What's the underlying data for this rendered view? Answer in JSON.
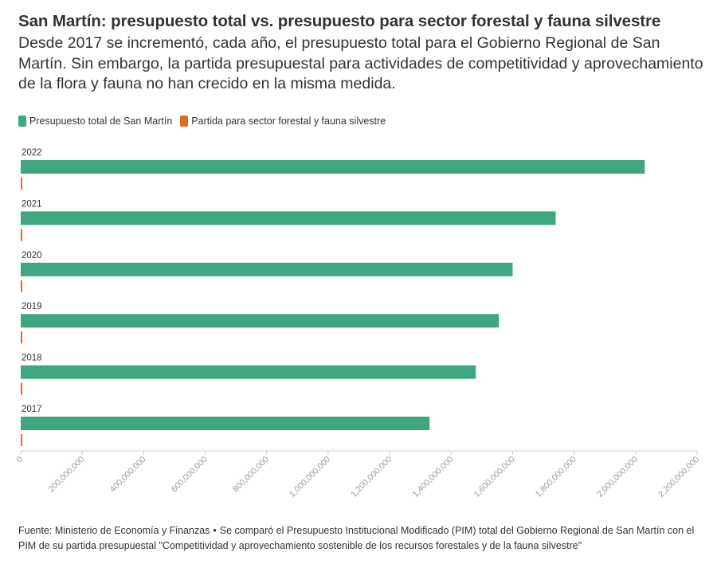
{
  "header": {
    "title": "San Martín: presupuesto total vs. presupuesto para sector forestal y fauna silvestre",
    "subtitle": "Desde 2017 se incrementó, cada año, el presupuesto total para el Gobierno Regional de San Martín. Sin embargo, la partida presupuestal para actividades de competitividad y aprovechamiento de la flora y fauna no han crecido en la misma medida."
  },
  "colors": {
    "total": "#3fa680",
    "forestal": "#e06c1e",
    "text": "#333333",
    "axis": "#cccccc",
    "tick_label": "#999999"
  },
  "chart_data": {
    "type": "bar",
    "orientation": "horizontal",
    "title": "San Martín: presupuesto total vs. presupuesto para sector forestal y fauna silvestre",
    "categories": [
      "2022",
      "2021",
      "2020",
      "2019",
      "2018",
      "2017"
    ],
    "series": [
      {
        "name": "Presupuesto total de San Martín",
        "color": "#3fa680",
        "values": [
          2030000000,
          1740000000,
          1600000000,
          1555000000,
          1480000000,
          1330000000
        ]
      },
      {
        "name": "Partida para sector forestal y fauna silvestre",
        "color": "#e06c1e",
        "values": [
          4500000,
          4000000,
          3800000,
          3500000,
          3200000,
          3000000
        ]
      }
    ],
    "xlim": [
      0,
      2200000000
    ],
    "x_ticks": [
      0,
      200000000,
      400000000,
      600000000,
      800000000,
      1000000000,
      1200000000,
      1400000000,
      1600000000,
      1800000000,
      2000000000,
      2200000000
    ],
    "x_tick_labels": [
      "0",
      "200,000,000",
      "400,000,000",
      "600,000,000",
      "800,000,000",
      "1,000,000,000",
      "1,200,000,000",
      "1,400,000,000",
      "1,600,000,000",
      "1,800,000,000",
      "2,000,000,000",
      "2,200,000,000"
    ],
    "legend_position": "top-left",
    "grid": false
  },
  "footer": {
    "source": "Fuente: Ministerio de Economía y Finanzas",
    "separator": "•",
    "note": "Se comparó el Presupuesto Institucional Modificado (PIM) total del Gobierno Regional de San Martín con el PIM de su partida presupuestal \"Competitividad y aprovechamiento sostenible de los recursos forestales y de la fauna silvestre\""
  }
}
